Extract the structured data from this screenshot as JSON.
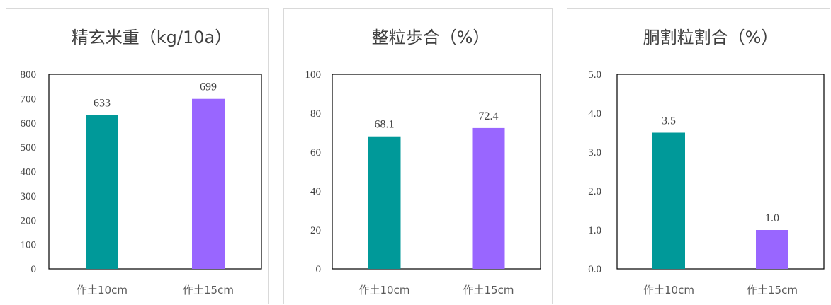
{
  "chart_data": [
    {
      "type": "bar",
      "title": "精玄米重（kg/10a）",
      "categories": [
        "作土10cm",
        "作土15cm"
      ],
      "values": [
        633,
        699
      ],
      "value_labels": [
        "633",
        "699"
      ],
      "yticks": [
        "0",
        "100",
        "200",
        "300",
        "400",
        "500",
        "600",
        "700",
        "800"
      ],
      "ylim": [
        0,
        800
      ],
      "colors": [
        "#009999",
        "#9966ff"
      ],
      "grid": false
    },
    {
      "type": "bar",
      "title": "整粒歩合（%）",
      "categories": [
        "作土10cm",
        "作土15cm"
      ],
      "values": [
        68.1,
        72.4
      ],
      "value_labels": [
        "68.1",
        "72.4"
      ],
      "yticks": [
        "0",
        "20",
        "40",
        "60",
        "80",
        "100"
      ],
      "ylim": [
        0,
        100
      ],
      "colors": [
        "#009999",
        "#9966ff"
      ],
      "grid": false
    },
    {
      "type": "bar",
      "title": "胴割粒割合（%）",
      "categories": [
        "作土10cm",
        "作土15cm"
      ],
      "values": [
        3.5,
        1.0
      ],
      "value_labels": [
        "3.5",
        "1.0"
      ],
      "yticks": [
        "0.0",
        "1.0",
        "2.0",
        "3.0",
        "4.0",
        "5.0"
      ],
      "ylim": [
        0,
        5
      ],
      "colors": [
        "#009999",
        "#9966ff"
      ],
      "grid": false
    }
  ]
}
